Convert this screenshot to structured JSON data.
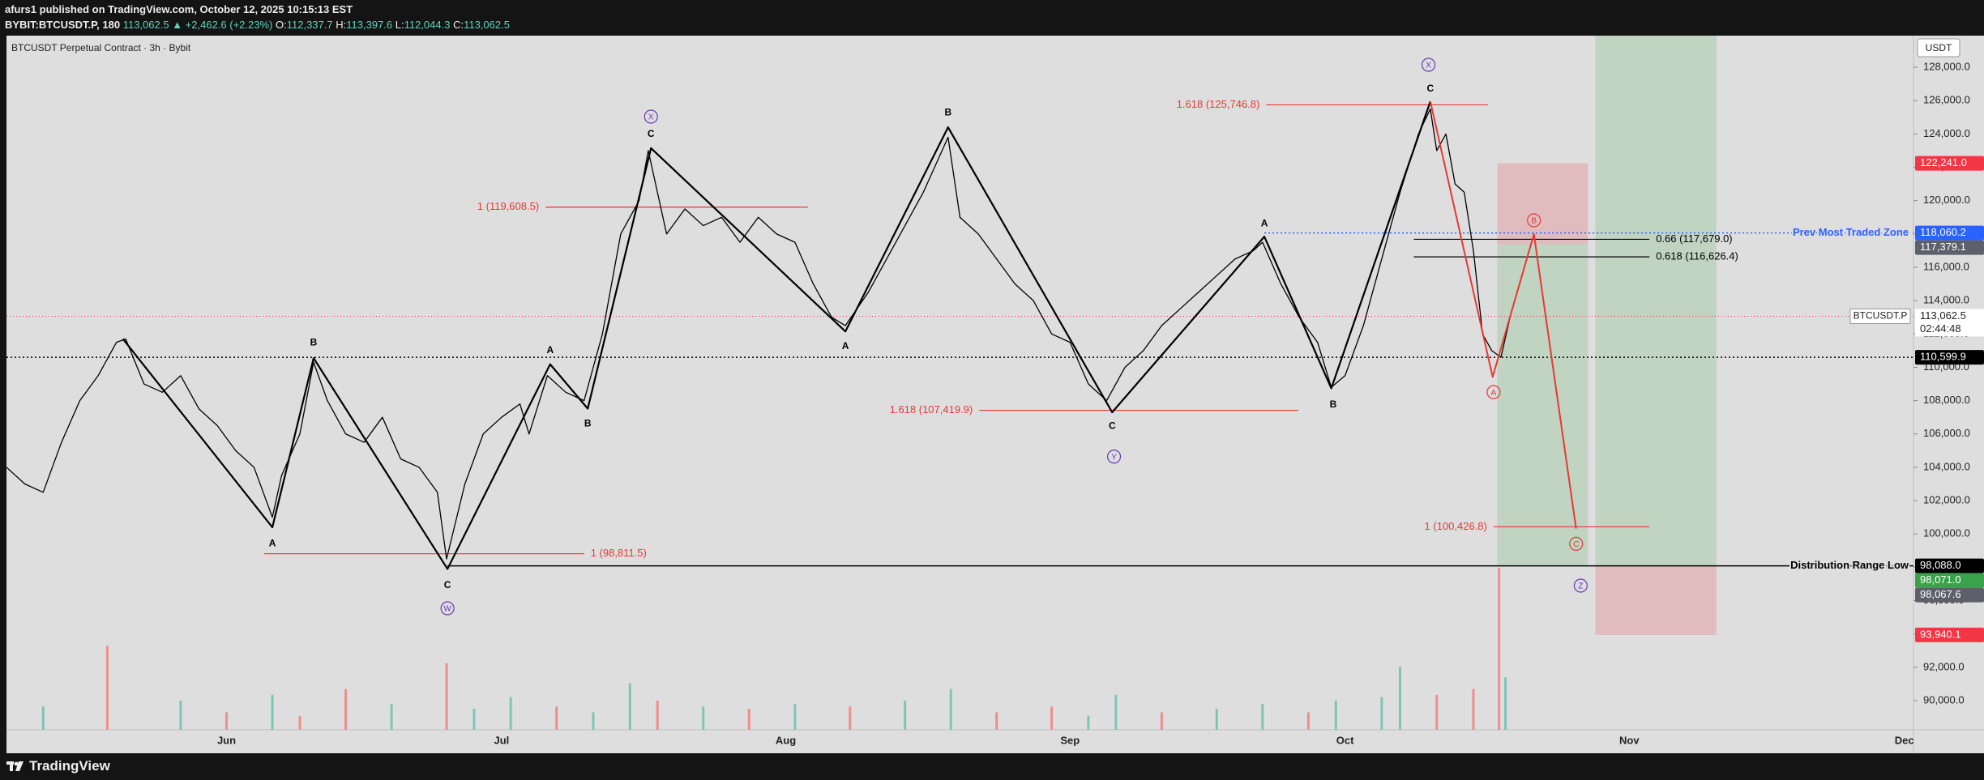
{
  "header": {
    "line1": "afurs1 published on TradingView.com, October 12, 2025 10:15:13 EST",
    "symbol": "BYBIT:BTCUSDT.P, 180",
    "price": "113,062.5",
    "change": "▲ +2,462.6 (+2.23%)",
    "o_label": "O:",
    "o": "112,337.7",
    "h_label": "H:",
    "h": "113,397.6",
    "l_label": "L:",
    "l": "112,044.3",
    "c_label": "C:",
    "c": "113,062.5"
  },
  "footer": {
    "brand": "TradingView"
  },
  "chart_data": {
    "type": "line",
    "title": "BTCUSDT Perpetual Contract · 3h · Bybit",
    "currency": "USDT",
    "color": "#000000",
    "x": [
      -24,
      -22,
      -20,
      -18,
      -16,
      -14,
      -12,
      -11,
      -9,
      -7,
      -5,
      -3,
      -1,
      1,
      3,
      5,
      6,
      8,
      9.5,
      11,
      13,
      15,
      17,
      19,
      21,
      23,
      24,
      26,
      28,
      30,
      32,
      33,
      35,
      37,
      39,
      41,
      43,
      45,
      46,
      48,
      50,
      52,
      54,
      56,
      58,
      60,
      62,
      64,
      66,
      67.5,
      70,
      72,
      74,
      76,
      78.7,
      80,
      82,
      84,
      86,
      88,
      90,
      92,
      94,
      96,
      98,
      100,
      102,
      104,
      106,
      108,
      110,
      112,
      113,
      115,
      117,
      119,
      120.5,
      122,
      124,
      126,
      128,
      130,
      131.3,
      132,
      133,
      134,
      135,
      136,
      137,
      138,
      139,
      140
    ],
    "values": [
      104000,
      103000,
      102500,
      105500,
      108000,
      109500,
      111500,
      111700,
      109000,
      108500,
      109500,
      107500,
      106500,
      105000,
      104000,
      101000,
      103500,
      106000,
      110300,
      108000,
      106000,
      105500,
      107000,
      104500,
      104000,
      102500,
      98500,
      103000,
      106000,
      107000,
      107800,
      106000,
      109500,
      108500,
      108000,
      112000,
      118000,
      120000,
      123000,
      118000,
      119500,
      118500,
      119000,
      117500,
      119000,
      118000,
      117500,
      115000,
      113000,
      112500,
      114500,
      116500,
      118500,
      120500,
      123800,
      119000,
      118000,
      116500,
      115000,
      114000,
      112000,
      111500,
      109000,
      108000,
      110000,
      111000,
      112500,
      113500,
      114500,
      115500,
      116500,
      117000,
      117500,
      115000,
      113000,
      111500,
      108800,
      109500,
      112500,
      116500,
      120500,
      124000,
      125500,
      123000,
      124000,
      121000,
      120500,
      117000,
      112000,
      111000,
      110600,
      113000
    ],
    "xlim": [
      -24,
      184
    ],
    "xticks": [
      {
        "value": 0,
        "label": "Jun"
      },
      {
        "value": 30,
        "label": "Jul"
      },
      {
        "value": 61,
        "label": "Aug"
      },
      {
        "value": 92,
        "label": "Sep"
      },
      {
        "value": 122,
        "label": "Oct"
      },
      {
        "value": 153,
        "label": "Nov"
      },
      {
        "value": 183,
        "label": "Dec"
      }
    ],
    "ylim": [
      88250,
      129900
    ],
    "yticks": [
      {
        "value": 128000,
        "label": "128,000.0"
      },
      {
        "value": 126000,
        "label": "126,000.0"
      },
      {
        "value": 124000,
        "label": "124,000.0"
      },
      {
        "value": 122000,
        "label": "122,000.0"
      },
      {
        "value": 120000,
        "label": "120,000.0"
      },
      {
        "value": 118000,
        "label": "118,000.0"
      },
      {
        "value": 116000,
        "label": "116,000.0"
      },
      {
        "value": 114000,
        "label": "114,000.0"
      },
      {
        "value": 112000,
        "label": "112,000.0"
      },
      {
        "value": 110000,
        "label": "110,000.0"
      },
      {
        "value": 108000,
        "label": "108,000.0"
      },
      {
        "value": 106000,
        "label": "106,000.0"
      },
      {
        "value": 104000,
        "label": "104,000.0"
      },
      {
        "value": 102000,
        "label": "102,000.0"
      },
      {
        "value": 100000,
        "label": "100,000.0"
      },
      {
        "value": 98000,
        "label": "98,000.0"
      },
      {
        "value": 96000,
        "label": "96,000.0"
      },
      {
        "value": 94000,
        "label": "94,000.0"
      },
      {
        "value": 92000,
        "label": "92,000.0"
      },
      {
        "value": 90000,
        "label": "90,000.0"
      }
    ],
    "waves": {
      "color": "#000000",
      "x": [
        -11.3,
        5,
        9.5,
        24.1,
        35.3,
        39.4,
        46.3,
        67.5,
        78.7,
        96.6,
        113.2,
        120.5,
        131.3
      ],
      "values": [
        111700,
        100400,
        110550,
        97900,
        110180,
        107520,
        123150,
        112150,
        124400,
        107300,
        117840,
        108740,
        125950
      ]
    },
    "projection": {
      "color": "#e53935",
      "x": [
        131.3,
        138.1,
        142.6,
        147.2
      ],
      "values": [
        125950,
        109420,
        117990,
        100320
      ]
    },
    "wave_labels": [
      {
        "text": "A",
        "x": 5,
        "y": 99400
      },
      {
        "text": "B",
        "x": 9.5,
        "y": 111470
      },
      {
        "text": "C",
        "x": 24.1,
        "y": 96900
      },
      {
        "text": "A",
        "x": 35.3,
        "y": 111010
      },
      {
        "text": "B",
        "x": 39.4,
        "y": 106610
      },
      {
        "text": "C",
        "x": 46.3,
        "y": 123980
      },
      {
        "text": "A",
        "x": 67.5,
        "y": 111240
      },
      {
        "text": "B",
        "x": 78.7,
        "y": 125270
      },
      {
        "text": "C",
        "x": 96.6,
        "y": 106460
      },
      {
        "text": "A",
        "x": 113.2,
        "y": 118600
      },
      {
        "text": "B",
        "x": 120.7,
        "y": 107750
      },
      {
        "text": "C",
        "x": 131.3,
        "y": 126710
      }
    ],
    "circled_labels": [
      {
        "text": "W",
        "x": 24.1,
        "y": 95540,
        "color": "#673ab7"
      },
      {
        "text": "X",
        "x": 46.3,
        "y": 125040,
        "color": "#673ab7"
      },
      {
        "text": "X",
        "x": 131.1,
        "y": 128150,
        "color": "#673ab7"
      },
      {
        "text": "Y",
        "x": 96.8,
        "y": 104640,
        "color": "#673ab7"
      },
      {
        "text": "Z",
        "x": 147.7,
        "y": 96900,
        "color": "#673ab7"
      },
      {
        "text": "A",
        "x": 138.2,
        "y": 108510,
        "color": "#e53935"
      },
      {
        "text": "B",
        "x": 142.6,
        "y": 118820,
        "color": "#e53935"
      },
      {
        "text": "C",
        "x": 147.2,
        "y": 99410,
        "color": "#e53935"
      }
    ],
    "levels": [
      {
        "label": "1.618 (125,746.8)",
        "value": 125746.8,
        "x": [
          113.4,
          137.6
        ],
        "color": "#e53935",
        "side": "left"
      },
      {
        "label": "1 (119,608.5)",
        "value": 119608.5,
        "x": [
          34.8,
          63.4
        ],
        "color": "#e53935",
        "side": "left"
      },
      {
        "label": "1.618 (107,419.9)",
        "value": 107419.9,
        "x": [
          82.1,
          116.9
        ],
        "color": "#e53935",
        "side": "left"
      },
      {
        "label": "1 (98,811.5)",
        "value": 98811.5,
        "x": [
          4.1,
          39
        ],
        "color": "#e53935",
        "side": "right"
      },
      {
        "label": "1 (100,426.8)",
        "value": 100426.8,
        "x": [
          138.2,
          155.2
        ],
        "color": "#e53935",
        "side": "left"
      },
      {
        "label": "0.66 (117,679.0)",
        "value": 117679.0,
        "x": [
          129.5,
          155.2
        ],
        "color": "#000000",
        "side": "right"
      },
      {
        "label": "0.618 (116,626.4)",
        "value": 116626.4,
        "x": [
          129.5,
          155.2
        ],
        "color": "#000000",
        "side": "right"
      }
    ],
    "hlines": [
      {
        "value": 118060.2,
        "label": "Prev Most Traded Zone",
        "x0": 113.2,
        "color": "#2962ff",
        "dash": "dotted"
      },
      {
        "value": 98088.0,
        "label": "Distribution Range Low",
        "x0": 24.1,
        "color": "#000000",
        "dash": "solid"
      },
      {
        "value": 110599.9,
        "color": "#000000",
        "dash": "dotted"
      }
    ],
    "last_price": {
      "value": 113062.5,
      "label": "113,062.5",
      "countdown": "02:44:48",
      "symbol": "BTCUSDT.P",
      "color": "#e53935"
    },
    "axis_labels": [
      {
        "value": 122241.0,
        "label": "122,241.0",
        "color": "#f23645"
      },
      {
        "value": 118060.2,
        "label": "118,060.2",
        "color": "#2962ff"
      },
      {
        "value": 117379.1,
        "label": "117,379.1",
        "color": "#5d606b"
      },
      {
        "value": 110599.9,
        "label": "110,599.9",
        "color": "#000000"
      },
      {
        "value": 98088.0,
        "label": "98,088.0",
        "color": "#000000"
      },
      {
        "value": 98071.0,
        "label": "98,071.0",
        "color": "#3aa34a"
      },
      {
        "value": 98067.6,
        "label": "98,067.6",
        "color": "#5d606b"
      },
      {
        "value": 93940.1,
        "label": "93,940.1",
        "color": "#f23645"
      }
    ],
    "positions": [
      {
        "x": [
          138.6,
          148.5
        ],
        "stop": 122241.0,
        "entry": 117379.1,
        "target": 98071.0
      },
      {
        "x": [
          149.3,
          162.5
        ],
        "entry": 98067.6,
        "stop": 93940.1
      }
    ],
    "volume": {
      "x": [
        -20,
        -13,
        -5,
        0,
        5,
        8,
        13,
        18,
        24,
        27,
        31,
        36,
        40,
        44,
        47,
        52,
        57,
        62,
        68,
        74,
        79,
        84,
        90,
        94,
        97,
        102,
        108,
        113,
        118,
        121,
        126,
        128,
        132,
        136,
        138.8,
        139.5
      ],
      "values": [
        20,
        72,
        25,
        15,
        30,
        12,
        35,
        22,
        57,
        18,
        28,
        20,
        15,
        40,
        25,
        20,
        18,
        22,
        20,
        25,
        35,
        15,
        20,
        12,
        30,
        15,
        18,
        22,
        15,
        25,
        28,
        54,
        30,
        35,
        139,
        45
      ],
      "colors": [
        "#7fc4b8",
        "#ec8f8c",
        "#7fc4b8",
        "#ec8f8c",
        "#7fc4b8",
        "#ec8f8c",
        "#ec8f8c",
        "#7fc4b8",
        "#ec8f8c",
        "#7fc4b8",
        "#7fc4b8",
        "#ec8f8c",
        "#7fc4b8",
        "#7fc4b8",
        "#ec8f8c",
        "#7fc4b8",
        "#ec8f8c",
        "#7fc4b8",
        "#ec8f8c",
        "#7fc4b8",
        "#7fc4b8",
        "#ec8f8c",
        "#ec8f8c",
        "#7fc4b8",
        "#7fc4b8",
        "#ec8f8c",
        "#7fc4b8",
        "#7fc4b8",
        "#ec8f8c",
        "#7fc4b8",
        "#7fc4b8",
        "#7fc4b8",
        "#ec8f8c",
        "#ec8f8c",
        "#ec8f8c",
        "#7fc4b8"
      ]
    }
  }
}
